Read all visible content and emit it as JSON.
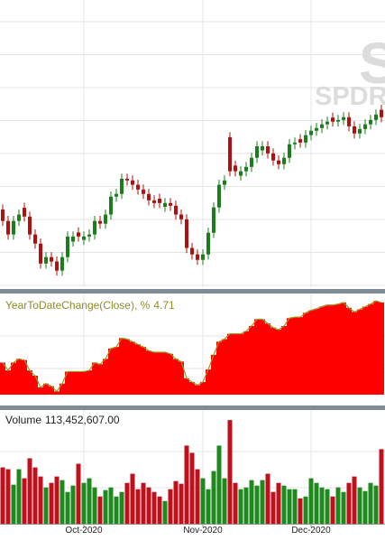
{
  "chart_data": [
    {
      "type": "candlestick",
      "watermark": {
        "symbol": "S",
        "name": "SPDR"
      },
      "up_color": "#1b7d1b",
      "down_color": "#b20f0f",
      "ylim": [
        320,
        405
      ],
      "open": [
        343.0,
        339.6,
        335.6,
        339.6,
        343.5,
        340.9,
        335.6,
        332.9,
        327.0,
        328.9,
        327.6,
        324.9,
        328.9,
        333.5,
        336.2,
        334.0,
        335.0,
        335.6,
        339.6,
        338.8,
        341.5,
        346.8,
        347.6,
        352.1,
        351.6,
        350.3,
        348.9,
        347.6,
        345.7,
        346.2,
        343.8,
        344.9,
        344.1,
        341.5,
        340.1,
        331.6,
        329.7,
        328.1,
        329.7,
        336.1,
        343.6,
        350.3,
        364.4,
        356.0,
        353.0,
        354.3,
        355.6,
        358.3,
        360.5,
        361.7,
        359.6,
        357.5,
        356.4,
        358.3,
        362.3,
        363.8,
        362.8,
        365.0,
        366.3,
        367.1,
        368.2,
        370.2,
        369.0,
        369.5,
        370.3,
        367.6,
        365.5,
        366.8,
        368.2,
        369.5,
        372.5
      ],
      "high": [
        344.5,
        341.1,
        341.1,
        343.0,
        345.0,
        342.4,
        337.1,
        334.4,
        330.4,
        330.4,
        329.1,
        330.4,
        336.5,
        336.5,
        337.7,
        336.5,
        337.1,
        341.1,
        341.1,
        343.0,
        348.3,
        349.1,
        353.6,
        353.6,
        353.1,
        351.8,
        350.4,
        349.1,
        347.2,
        347.7,
        346.4,
        346.4,
        345.6,
        343.0,
        341.6,
        333.1,
        331.2,
        331.2,
        337.6,
        345.1,
        351.8,
        353.1,
        365.9,
        357.5,
        355.8,
        357.1,
        359.8,
        363.2,
        363.2,
        363.2,
        361.1,
        359.0,
        359.8,
        363.8,
        364.3,
        365.3,
        366.5,
        367.8,
        368.6,
        369.7,
        370.5,
        371.7,
        371.0,
        371.8,
        371.8,
        369.1,
        368.3,
        369.7,
        371.0,
        372.6,
        374.0
      ],
      "low": [
        338.1,
        334.1,
        334.1,
        338.1,
        339.4,
        334.1,
        331.4,
        325.5,
        325.5,
        326.1,
        323.4,
        323.4,
        327.4,
        332.0,
        333.5,
        332.5,
        333.5,
        334.1,
        337.3,
        337.3,
        340.0,
        345.3,
        346.1,
        350.1,
        348.8,
        347.4,
        346.1,
        344.2,
        343.4,
        343.4,
        342.3,
        342.6,
        340.0,
        338.6,
        330.1,
        328.2,
        326.6,
        326.6,
        328.2,
        334.6,
        342.1,
        348.8,
        352.8,
        352.8,
        351.5,
        352.8,
        354.1,
        356.8,
        359.0,
        358.1,
        356.0,
        354.9,
        354.9,
        356.8,
        360.8,
        361.3,
        361.3,
        363.5,
        364.8,
        365.6,
        366.7,
        367.5,
        367.5,
        368.0,
        366.1,
        364.0,
        364.0,
        365.3,
        366.7,
        368.0,
        368.8
      ],
      "close": [
        339.6,
        335.6,
        339.6,
        341.5,
        340.9,
        335.6,
        332.9,
        327.0,
        328.9,
        327.6,
        324.9,
        328.9,
        335.0,
        335.0,
        335.0,
        335.0,
        335.6,
        339.6,
        338.8,
        341.5,
        346.8,
        347.6,
        352.1,
        351.6,
        350.3,
        348.9,
        347.6,
        345.7,
        344.9,
        344.9,
        344.9,
        344.1,
        341.5,
        340.1,
        331.6,
        329.7,
        328.1,
        329.7,
        336.1,
        343.6,
        350.3,
        351.6,
        354.3,
        354.3,
        354.3,
        355.6,
        358.3,
        361.7,
        361.7,
        359.6,
        357.5,
        356.4,
        358.3,
        362.3,
        362.8,
        362.8,
        365.0,
        366.3,
        367.1,
        368.2,
        369.0,
        369.0,
        369.5,
        370.3,
        367.6,
        365.5,
        366.8,
        368.2,
        369.5,
        371.1,
        370.3
      ]
    },
    {
      "type": "area",
      "title": "YearToDateChange(Close), %",
      "color": "#ff0000",
      "line_color": "#9a9a1e",
      "ylim": [
        -8.6,
        6.0
      ],
      "values": [
        -3.97,
        -5.1,
        -3.97,
        -3.44,
        -3.61,
        -5.1,
        -5.87,
        -7.54,
        -7.0,
        -7.37,
        -8.13,
        -7.0,
        -5.27,
        -5.27,
        -5.27,
        -5.27,
        -5.1,
        -3.97,
        -4.2,
        -3.44,
        -1.94,
        -1.71,
        -0.44,
        -0.58,
        -0.95,
        -1.34,
        -1.71,
        -2.25,
        -2.47,
        -2.47,
        -2.47,
        -2.7,
        -3.44,
        -3.83,
        -6.23,
        -6.77,
        -7.22,
        -6.77,
        -4.96,
        -2.84,
        -0.95,
        -0.58,
        0.18,
        0.18,
        0.18,
        0.55,
        1.31,
        2.28,
        2.28,
        1.68,
        1.09,
        0.78,
        1.31,
        2.45,
        2.59,
        2.59,
        3.21,
        3.58,
        3.8,
        4.11,
        4.34,
        4.34,
        4.48,
        4.71,
        3.94,
        3.35,
        3.72,
        4.11,
        4.48,
        4.93,
        4.71
      ]
    },
    {
      "type": "bar",
      "title": "Volume",
      "up_color": "#1e8a1e",
      "down_color": "#c0101c",
      "ylim": [
        0,
        173000000
      ],
      "categories": [
        null,
        null,
        null,
        null,
        null,
        null,
        null,
        null,
        null,
        null,
        null,
        null,
        null,
        null,
        null,
        "Oct-2020",
        null,
        null,
        null,
        null,
        null,
        null,
        null,
        null,
        null,
        null,
        null,
        null,
        null,
        null,
        null,
        null,
        null,
        null,
        null,
        null,
        null,
        "Nov-2020",
        null,
        null,
        null,
        null,
        null,
        null,
        null,
        null,
        null,
        null,
        null,
        null,
        null,
        null,
        null,
        null,
        null,
        null,
        null,
        "Dec-2020",
        null,
        null,
        null,
        null,
        null,
        null,
        null,
        null,
        null,
        null,
        null,
        null,
        null
      ],
      "values": [
        85700000,
        83000000,
        59500000,
        83000000,
        69200000,
        99600000,
        85700000,
        71900000,
        55300000,
        62200000,
        71900000,
        66400000,
        48400000,
        58100000,
        91300000,
        62200000,
        69200000,
        55300000,
        41500000,
        51200000,
        55300000,
        41500000,
        48400000,
        62200000,
        76100000,
        52600000,
        62200000,
        55300000,
        48400000,
        41500000,
        34600000,
        52600000,
        65000000,
        60900000,
        118900000,
        107900000,
        83000000,
        69200000,
        52600000,
        80200000,
        118900000,
        69200000,
        157700000,
        62200000,
        52600000,
        55300000,
        66400000,
        58100000,
        66400000,
        76100000,
        48400000,
        62200000,
        58100000,
        52600000,
        52600000,
        38700000,
        41500000,
        69200000,
        62200000,
        55300000,
        52600000,
        41500000,
        55300000,
        48400000,
        62200000,
        71900000,
        55300000,
        49800000,
        62200000,
        58100000,
        113452607
      ],
      "value_labels": [
        null,
        null,
        null,
        null,
        null,
        null,
        null,
        null,
        null,
        null,
        null,
        null,
        null,
        null,
        null,
        null,
        null,
        null,
        null,
        null,
        null,
        null,
        null,
        null,
        null,
        null,
        null,
        null,
        null,
        null,
        null,
        null,
        null,
        null,
        null,
        null,
        null,
        null,
        null,
        null,
        null,
        null,
        null,
        null,
        null,
        null,
        null,
        null,
        null,
        null,
        null,
        null,
        null,
        null,
        null,
        null,
        null,
        null,
        null,
        null,
        null,
        null,
        null,
        null,
        null,
        null,
        null,
        null,
        null,
        null,
        "113,452,607.00"
      ]
    }
  ]
}
